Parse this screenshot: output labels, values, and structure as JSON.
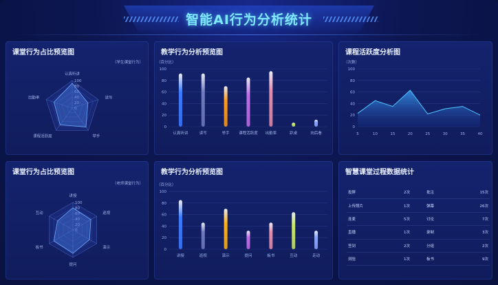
{
  "title": "智能AI行为分析统计",
  "radar1": {
    "title": "课堂行为占比预览图",
    "legend": "（学生课堂行为）",
    "axes": [
      "认真听讲",
      "读写",
      "举手",
      "课程活跃度",
      "出勤率"
    ],
    "values": [
      90,
      60,
      85,
      75,
      70
    ],
    "ticks": [
      "0",
      "20",
      "40",
      "60",
      "80",
      "100"
    ]
  },
  "bar1": {
    "title": "教学行为分析预览图",
    "unit": "（百分比）",
    "yticks": [
      "0",
      "20",
      "40",
      "60",
      "80",
      "100"
    ],
    "categories": [
      "认真听讲",
      "读写",
      "举手",
      "课程活跃度",
      "出勤率",
      "趴桌",
      "向后看"
    ],
    "values": [
      92,
      92,
      70,
      85,
      96,
      7,
      12
    ],
    "colors": [
      "#3b7bff",
      "#6f7bbd",
      "#ff9a1a",
      "#c06ee8",
      "#e88aa8",
      "#c8e86a",
      "#8aa6ff"
    ]
  },
  "line": {
    "title": "课程活跃度分析图",
    "unit": "（次数）",
    "yticks": [
      "0",
      "20",
      "40",
      "60",
      "80",
      "100"
    ],
    "x": [
      5,
      10,
      15,
      20,
      25,
      30,
      35,
      40
    ],
    "values": [
      23,
      45,
      35,
      63,
      22,
      31,
      35,
      20
    ]
  },
  "radar2": {
    "title": "课堂行为占比预览图",
    "legend": "（老师课堂行为）",
    "axes": [
      "讲授",
      "巡视",
      "演示",
      "提问",
      "板书",
      "互动"
    ],
    "values": [
      80,
      75,
      70,
      85,
      80,
      65
    ],
    "ticks": [
      "0",
      "20",
      "40",
      "60",
      "80",
      "100"
    ]
  },
  "bar2": {
    "title": "教学行为分析预览图",
    "unit": "（百分比）",
    "yticks": [
      "0",
      "20",
      "40",
      "60",
      "80",
      "100"
    ],
    "categories": [
      "讲授",
      "巡视",
      "演示",
      "提问",
      "板书",
      "互动",
      "走动"
    ],
    "values": [
      85,
      46,
      70,
      32,
      46,
      64,
      32
    ],
    "colors": [
      "#3b7bff",
      "#6f7bbd",
      "#ffb11a",
      "#c06ee8",
      "#e88aa8",
      "#c8e86a",
      "#8aa6ff"
    ]
  },
  "stats": {
    "title": "智慧课堂过程数据统计",
    "rows": [
      [
        [
          "投屏",
          "2次"
        ],
        [
          "批注",
          "15次"
        ]
      ],
      [
        [
          "上传照片",
          "1次"
        ],
        [
          "弹幕",
          "26次"
        ]
      ],
      [
        [
          "连麦",
          "5次"
        ],
        [
          "讨论",
          "7次"
        ]
      ],
      [
        [
          "直播",
          "1次"
        ],
        [
          "录制",
          "3次"
        ]
      ],
      [
        [
          "签到",
          "2次"
        ],
        [
          "分组",
          "2次"
        ]
      ],
      [
        [
          "测验",
          "1次"
        ],
        [
          "板书",
          "9次"
        ]
      ]
    ]
  }
}
